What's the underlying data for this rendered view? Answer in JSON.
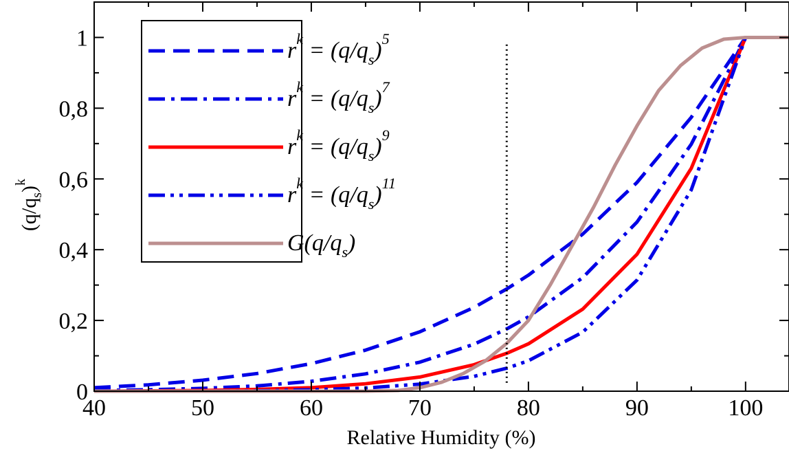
{
  "chart_data": {
    "type": "line",
    "xlabel": "Relative Humidity (%)",
    "ylabel": {
      "base": "(q/q",
      "sub": "s",
      "close": ")",
      "sup": "k"
    },
    "xlim": [
      40,
      104
    ],
    "ylim": [
      0,
      1.1
    ],
    "x_ticks": [
      40,
      50,
      60,
      70,
      80,
      90,
      100
    ],
    "x_tick_labels": [
      "40",
      "50",
      "60",
      "70",
      "80",
      "90",
      "100"
    ],
    "y_ticks": [
      0,
      0.2,
      0.4,
      0.6,
      0.8,
      1.0
    ],
    "y_tick_labels": [
      "0",
      "0,2",
      "0,4",
      "0,6",
      "0,8",
      "1"
    ],
    "grid": false,
    "legend_position": "top-left",
    "vertical_reference_line": {
      "x": 78,
      "style": "dotted",
      "color": "#000000"
    },
    "series": [
      {
        "legend": {
          "lhs": "r",
          "lhs_sup": "k",
          "eq": " = (q/q",
          "sub": "s",
          "close": ")",
          "sup": "5"
        },
        "color": "#0000e6",
        "dash": "dashed",
        "x": [
          40,
          45,
          50,
          55,
          60,
          65,
          70,
          75,
          78,
          80,
          85,
          90,
          95,
          100,
          104
        ],
        "y": [
          0.01,
          0.018,
          0.031,
          0.05,
          0.078,
          0.116,
          0.168,
          0.237,
          0.289,
          0.328,
          0.444,
          0.59,
          0.774,
          1.0,
          1.0
        ]
      },
      {
        "legend": {
          "lhs": "r",
          "lhs_sup": "k",
          "eq": " = (q/q",
          "sub": "s",
          "close": ")",
          "sup": "7"
        },
        "color": "#0000e6",
        "dash": "dashdot",
        "x": [
          40,
          45,
          50,
          55,
          60,
          65,
          70,
          75,
          78,
          80,
          85,
          90,
          95,
          100,
          104
        ],
        "y": [
          0.002,
          0.004,
          0.008,
          0.015,
          0.028,
          0.049,
          0.082,
          0.133,
          0.176,
          0.21,
          0.321,
          0.478,
          0.698,
          1.0,
          1.0
        ]
      },
      {
        "legend": {
          "lhs": "r",
          "lhs_sup": "k",
          "eq": " = (q/q",
          "sub": "s",
          "close": ")",
          "sup": "9"
        },
        "color": "#ff0000",
        "dash": "solid",
        "x": [
          40,
          45,
          50,
          55,
          60,
          65,
          70,
          75,
          78,
          80,
          85,
          90,
          95,
          100,
          104
        ],
        "y": [
          0.0,
          0.001,
          0.002,
          0.005,
          0.01,
          0.021,
          0.04,
          0.075,
          0.107,
          0.134,
          0.232,
          0.387,
          0.63,
          1.0,
          1.0
        ]
      },
      {
        "legend": {
          "lhs": "r",
          "lhs_sup": "k",
          "eq": " = (q/q",
          "sub": "s",
          "close": ")",
          "sup": "11"
        },
        "color": "#0000e6",
        "dash": "dashdotdot",
        "x": [
          40,
          45,
          50,
          55,
          60,
          65,
          70,
          75,
          78,
          80,
          85,
          90,
          95,
          100,
          104
        ],
        "y": [
          0.0,
          0.0,
          0.0,
          0.001,
          0.004,
          0.009,
          0.02,
          0.042,
          0.065,
          0.086,
          0.167,
          0.314,
          0.569,
          1.0,
          1.0
        ]
      },
      {
        "legend": {
          "lhs": "G(q/q",
          "lhs_sup": "",
          "eq": "",
          "sub": "s",
          "close": ")",
          "sup": ""
        },
        "color": "#bc8f8f",
        "dash": "solid",
        "x": [
          40,
          60,
          65,
          68,
          70,
          72,
          74,
          76,
          78,
          80,
          82,
          84,
          86,
          88,
          90,
          92,
          94,
          96,
          98,
          100,
          104
        ],
        "y": [
          0.0,
          0.0,
          0.0,
          0.002,
          0.01,
          0.025,
          0.05,
          0.085,
          0.135,
          0.2,
          0.3,
          0.41,
          0.52,
          0.64,
          0.75,
          0.85,
          0.92,
          0.97,
          0.995,
          1.0,
          1.0
        ]
      }
    ]
  }
}
